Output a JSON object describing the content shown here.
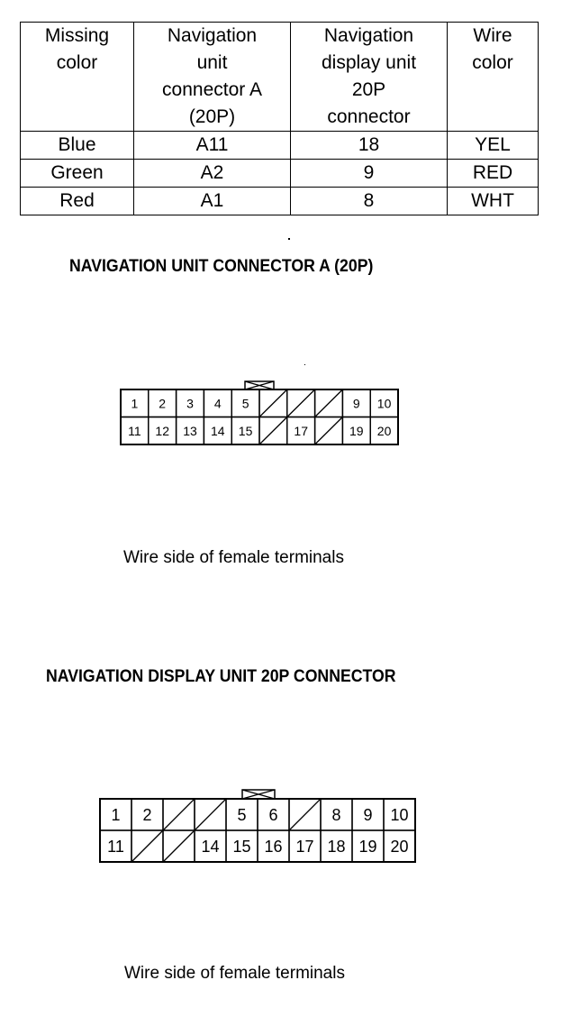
{
  "table": {
    "headers": [
      [
        "Missing",
        "color"
      ],
      [
        "Navigation",
        "unit",
        "connector A",
        "(20P)"
      ],
      [
        "Navigation",
        "display unit",
        "20P",
        "connector"
      ],
      [
        "Wire",
        "color"
      ]
    ],
    "rows": [
      [
        "Blue",
        "A11",
        "18",
        "YEL"
      ],
      [
        "Green",
        "A2",
        "9",
        "RED"
      ],
      [
        "Red",
        "A1",
        "8",
        "WHT"
      ]
    ]
  },
  "connector_a": {
    "title": "NAVIGATION UNIT CONNECTOR A (20P)",
    "caption": "Wire side of female terminals",
    "columns": 10,
    "top_row": [
      "1",
      "2",
      "3",
      "4",
      "5",
      null,
      null,
      null,
      "9",
      "10"
    ],
    "bottom_row": [
      "11",
      "12",
      "13",
      "14",
      "15",
      null,
      "17",
      null,
      "19",
      "20"
    ]
  },
  "connector_display": {
    "title": "NAVIGATION DISPLAY UNIT 20P CONNECTOR",
    "caption": "Wire side of female terminals",
    "columns": 10,
    "top_row": [
      "1",
      "2",
      null,
      null,
      "5",
      "6",
      null,
      "8",
      "9",
      "10"
    ],
    "bottom_row": [
      "11",
      null,
      null,
      "14",
      "15",
      "16",
      "17",
      "18",
      "19",
      "20"
    ]
  }
}
